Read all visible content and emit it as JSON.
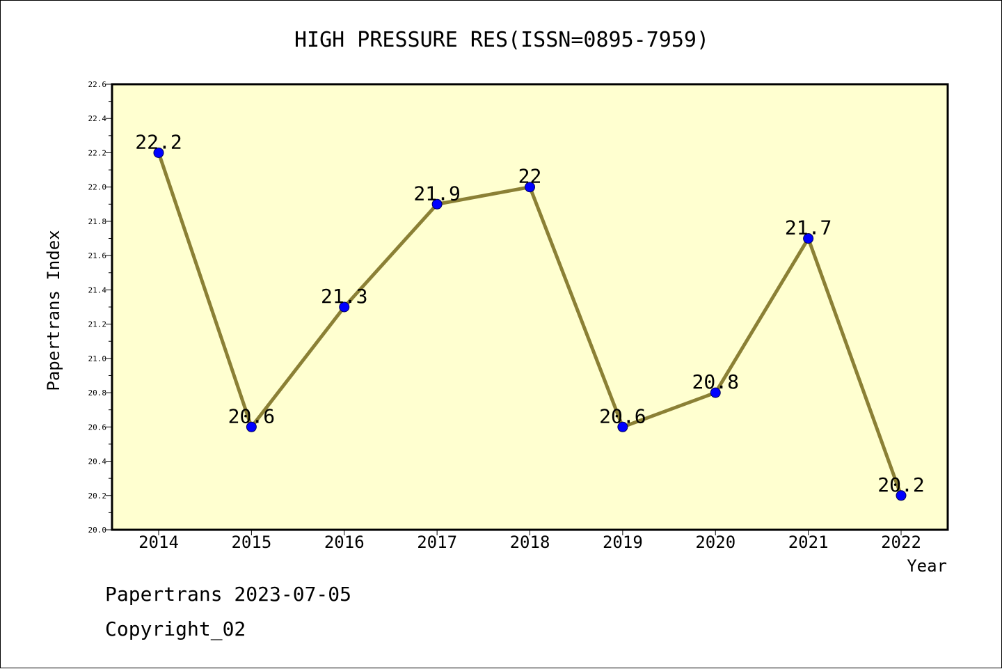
{
  "chart_data": {
    "type": "line",
    "title": "HIGH PRESSURE RES(ISSN=0895-7959)",
    "xlabel": "Year",
    "ylabel": "Papertrans Index",
    "categories": [
      "2014",
      "2015",
      "2016",
      "2017",
      "2018",
      "2019",
      "2020",
      "2021",
      "2022"
    ],
    "values": [
      22.2,
      20.6,
      21.3,
      21.9,
      22.0,
      20.6,
      20.8,
      21.7,
      20.2
    ],
    "data_labels": [
      "22.2",
      "20.6",
      "21.3",
      "21.9",
      "22",
      "20.6",
      "20.8",
      "21.7",
      "20.2"
    ],
    "y_ticks": [
      "20.0",
      "20.2",
      "20.4",
      "20.6",
      "20.8",
      "21.0",
      "21.2",
      "21.4",
      "21.6",
      "21.8",
      "22.0",
      "22.2",
      "22.4",
      "22.6"
    ],
    "ylim": [
      20.0,
      22.6
    ],
    "grid": false,
    "colors": {
      "plot_background": "#ffffd0",
      "line": "#8b8035",
      "marker": "#0000ff"
    }
  },
  "footer": {
    "line1": "Papertrans 2023-07-05",
    "line2": "Copyright_02"
  }
}
